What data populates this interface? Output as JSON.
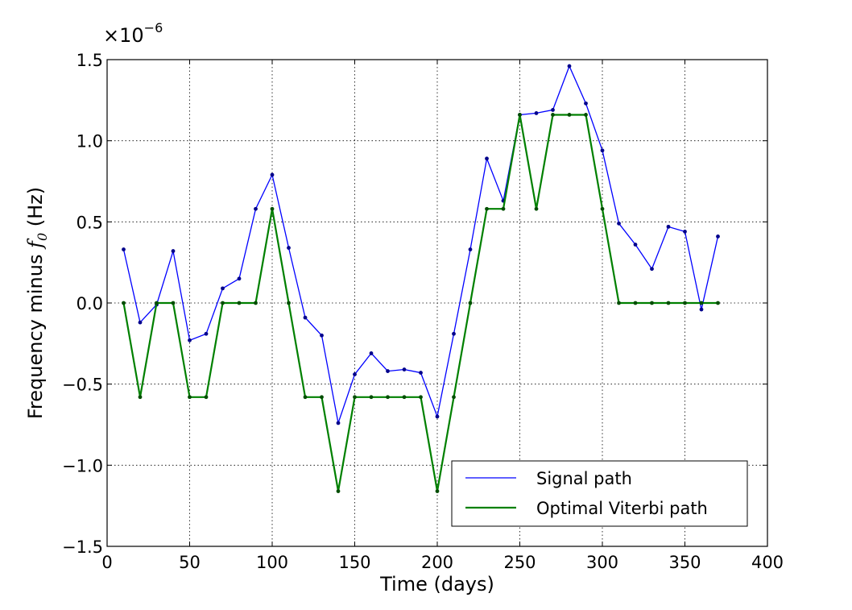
{
  "chart_data": {
    "type": "line",
    "title": "",
    "xlabel": "Time (days)",
    "ylabel": {
      "prefix": "Frequency minus ",
      "var": "f",
      "sub": "0",
      "unit": " (Hz)"
    },
    "y_multiplier": {
      "base": "×10",
      "exponent": "−6"
    },
    "xlim": [
      0,
      400
    ],
    "ylim": [
      -1.5,
      1.5
    ],
    "x_ticks": [
      0,
      50,
      100,
      150,
      200,
      250,
      300,
      350,
      400
    ],
    "y_ticks": [
      -1.5,
      -1.0,
      -0.5,
      0.0,
      0.5,
      1.0,
      1.5
    ],
    "x_tick_labels": [
      "0",
      "50",
      "100",
      "150",
      "200",
      "250",
      "300",
      "350",
      "400"
    ],
    "y_tick_labels": [
      "−1.5",
      "−1.0",
      "−0.5",
      "0.0",
      "0.5",
      "1.0",
      "1.5"
    ],
    "grid": true,
    "legend_position": "lower-right",
    "x": [
      10,
      20,
      30,
      40,
      50,
      60,
      70,
      80,
      90,
      100,
      110,
      120,
      130,
      140,
      150,
      160,
      170,
      180,
      190,
      200,
      210,
      220,
      230,
      240,
      250,
      260,
      270,
      280,
      290,
      300,
      310,
      320,
      330,
      340,
      350,
      360,
      370
    ],
    "series": [
      {
        "name": "Signal path",
        "color": "#0000ff",
        "values": [
          0.33,
          -0.12,
          -0.01,
          0.32,
          -0.23,
          -0.19,
          0.09,
          0.15,
          0.58,
          0.79,
          0.34,
          -0.09,
          -0.2,
          -0.74,
          -0.44,
          -0.31,
          -0.42,
          -0.41,
          -0.43,
          -0.7,
          -0.19,
          0.33,
          0.89,
          0.63,
          1.16,
          1.17,
          1.19,
          1.46,
          1.23,
          0.94,
          0.49,
          0.36,
          0.21,
          0.47,
          0.44,
          -0.04,
          0.41
        ]
      },
      {
        "name": "Optimal Viterbi path",
        "color": "#008000",
        "values": [
          0.0,
          -0.58,
          0.0,
          0.0,
          -0.58,
          -0.58,
          0.0,
          0.0,
          0.0,
          0.58,
          0.0,
          -0.58,
          -0.58,
          -1.16,
          -0.58,
          -0.58,
          -0.58,
          -0.58,
          -0.58,
          -1.16,
          -0.58,
          0.0,
          0.58,
          0.58,
          1.16,
          0.58,
          1.16,
          1.16,
          1.16,
          0.58,
          0.0,
          0.0,
          0.0,
          0.0,
          0.0,
          0.0,
          0.0
        ]
      }
    ]
  }
}
